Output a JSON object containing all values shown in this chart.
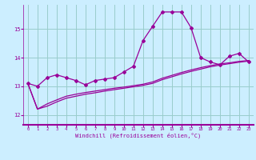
{
  "title": "",
  "xlabel": "Windchill (Refroidissement éolien,°C)",
  "bg_color": "#cceeff",
  "line_color": "#990099",
  "grid_color": "#99cccc",
  "x_ticks": [
    0,
    1,
    2,
    3,
    4,
    5,
    6,
    7,
    8,
    9,
    10,
    11,
    12,
    13,
    14,
    15,
    16,
    17,
    18,
    19,
    20,
    21,
    22,
    23
  ],
  "y_ticks": [
    12,
    13,
    14,
    15
  ],
  "xlim": [
    -0.5,
    23.5
  ],
  "ylim": [
    11.65,
    15.85
  ],
  "series1_x": [
    0,
    1,
    2,
    3,
    4,
    5,
    6,
    7,
    8,
    9,
    10,
    11,
    12,
    13,
    14,
    15,
    16,
    17,
    18,
    19,
    20,
    21,
    22,
    23
  ],
  "series1_y": [
    13.1,
    13.0,
    13.3,
    13.4,
    13.3,
    13.2,
    13.05,
    13.2,
    13.25,
    13.3,
    13.5,
    13.7,
    14.6,
    15.1,
    15.6,
    15.6,
    15.6,
    15.05,
    14.0,
    13.85,
    13.75,
    14.05,
    14.15,
    13.85
  ],
  "series2_x": [
    0,
    1,
    2,
    3,
    4,
    5,
    6,
    7,
    8,
    9,
    10,
    11,
    12,
    13,
    14,
    15,
    16,
    17,
    18,
    19,
    20,
    21,
    22,
    23
  ],
  "series2_y": [
    13.1,
    12.2,
    12.38,
    12.52,
    12.65,
    12.72,
    12.78,
    12.83,
    12.88,
    12.93,
    12.97,
    13.02,
    13.07,
    13.15,
    13.28,
    13.38,
    13.48,
    13.57,
    13.65,
    13.72,
    13.78,
    13.82,
    13.87,
    13.9
  ],
  "series3_x": [
    0,
    1,
    2,
    3,
    4,
    5,
    6,
    7,
    8,
    9,
    10,
    11,
    12,
    13,
    14,
    15,
    16,
    17,
    18,
    19,
    20,
    21,
    22,
    23
  ],
  "series3_y": [
    13.1,
    12.2,
    12.3,
    12.45,
    12.58,
    12.65,
    12.72,
    12.77,
    12.83,
    12.88,
    12.93,
    12.98,
    13.03,
    13.1,
    13.23,
    13.33,
    13.43,
    13.52,
    13.6,
    13.68,
    13.74,
    13.79,
    13.84,
    13.88
  ]
}
